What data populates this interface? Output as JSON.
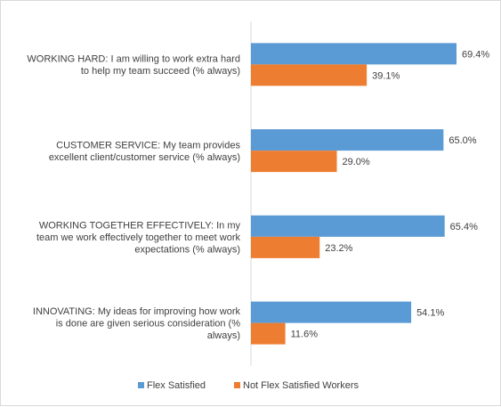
{
  "chart_data": {
    "type": "bar",
    "orientation": "horizontal",
    "title": "",
    "xlabel": "",
    "ylabel": "",
    "xlim": [
      0,
      80
    ],
    "grid": false,
    "legend_position": "bottom",
    "categories": [
      [
        "WORKING HARD: I am willing to work extra hard",
        "to help my team succeed (% always)"
      ],
      [
        "CUSTOMER SERVICE: My team provides",
        "excellent client/customer service (% always)"
      ],
      [
        "WORKING TOGETHER EFFECTIVELY: In my",
        "team we work effectively together to meet work",
        "expectations (% always)"
      ],
      [
        "INNOVATING: My ideas for improving how work",
        "is done are given serious consideration (%",
        "always)"
      ]
    ],
    "series": [
      {
        "name": "Flex Satisfied",
        "color": "#5b9bd5",
        "values": [
          69.4,
          65.0,
          65.4,
          54.1
        ],
        "labels": [
          "69.4%",
          "65.0%",
          "65.4%",
          "54.1%"
        ]
      },
      {
        "name": "Not Flex Satisfied Workers",
        "color": "#ed7d31",
        "values": [
          39.1,
          29.0,
          23.2,
          11.6
        ],
        "labels": [
          "39.1%",
          "29.0%",
          "23.2%",
          "11.6%"
        ]
      }
    ]
  }
}
